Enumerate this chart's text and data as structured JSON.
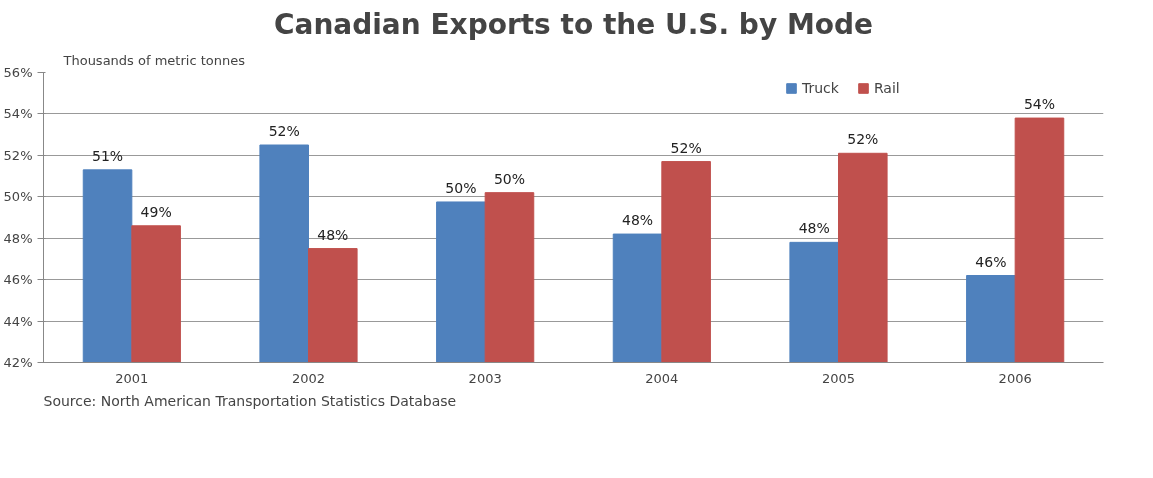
{
  "chart_data": {
    "type": "bar",
    "title": "Canadian Exports to the U.S. by Mode",
    "categories": [
      "2001",
      "2002",
      "2003",
      "2004",
      "2005",
      "2006"
    ],
    "series": [
      {
        "name": "Truck",
        "color": "#4f81bd",
        "values": [
          51.3,
          52.5,
          49.75,
          48.2,
          47.8,
          46.2
        ],
        "value_labels": [
          "51%",
          "52%",
          "50%",
          "48%",
          "48%",
          "46%"
        ]
      },
      {
        "name": "Rail",
        "color": "#c0504d",
        "values": [
          48.6,
          47.5,
          50.2,
          51.7,
          52.1,
          53.8
        ],
        "value_labels": [
          "49%",
          "48%",
          "50%",
          "52%",
          "52%",
          "54%"
        ]
      }
    ],
    "ylim": [
      42,
      56
    ],
    "yticks": [
      {
        "value": 42,
        "label": "42%"
      },
      {
        "value": 44,
        "label": "44%"
      },
      {
        "value": 46,
        "label": "46%"
      },
      {
        "value": 48,
        "label": "48%"
      },
      {
        "value": 50,
        "label": "50%"
      },
      {
        "value": 52,
        "label": "52%"
      },
      {
        "value": 54,
        "label": "54%"
      },
      {
        "value": 56,
        "label": "56%"
      }
    ],
    "grid": "y",
    "legend": "top right",
    "annotations": [
      "Thousands of metric tonnes",
      "Source: North American Transportation Statistics Database"
    ]
  }
}
